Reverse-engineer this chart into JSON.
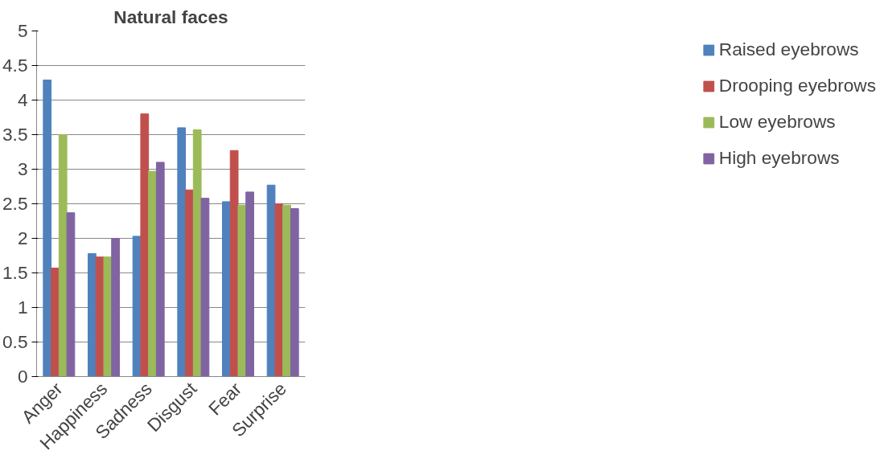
{
  "chart_data": {
    "type": "bar",
    "title": "Natural faces",
    "categories": [
      "Anger",
      "Happiness",
      "Sadness",
      "Disgust",
      "Fear",
      "Surprise"
    ],
    "series": [
      {
        "name": "Raised eyebrows",
        "color": "#4f81bd",
        "values": [
          4.29,
          1.78,
          2.03,
          3.6,
          2.53,
          2.77
        ]
      },
      {
        "name": "Drooping eyebrows",
        "color": "#c0504d",
        "values": [
          1.57,
          1.73,
          3.8,
          2.7,
          3.27,
          2.5
        ]
      },
      {
        "name": "Low eyebrows",
        "color": "#9bbb59",
        "values": [
          3.5,
          1.73,
          2.97,
          3.57,
          2.48,
          2.48
        ]
      },
      {
        "name": "High eyebrows",
        "color": "#8064a2",
        "values": [
          2.37,
          2.0,
          3.1,
          2.58,
          2.67,
          2.43
        ]
      }
    ],
    "ylim": [
      0,
      5
    ],
    "yticks": [
      0,
      0.5,
      1,
      1.5,
      2,
      2.5,
      3,
      3.5,
      4,
      4.5,
      5
    ],
    "grid": "y",
    "legend": "right"
  }
}
